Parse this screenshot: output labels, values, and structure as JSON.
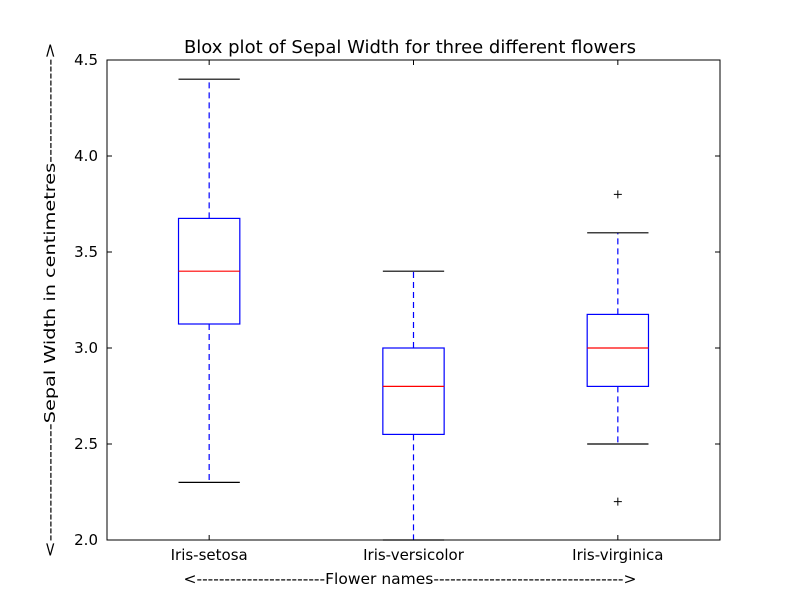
{
  "chart_data": {
    "type": "box",
    "title": "Blox plot of Sepal Width for three different flowers",
    "xlabel": "<-----------------------Flower names---------------------------------->",
    "ylabel": "<-----------------Sepal Width in centimetres--------------->",
    "ylim": [
      2.0,
      4.5
    ],
    "yticks": [
      "2.0",
      "2.5",
      "3.0",
      "3.5",
      "4.0",
      "4.5"
    ],
    "grid": false,
    "categories": [
      "Iris-setosa",
      "Iris-versicolor",
      "Iris-virginica"
    ],
    "boxes": [
      {
        "whisker_low": 2.3,
        "q1": 3.125,
        "median": 3.4,
        "q3": 3.675,
        "whisker_high": 4.4,
        "outliers": []
      },
      {
        "whisker_low": 2.0,
        "q1": 2.55,
        "median": 2.8,
        "q3": 3.0,
        "whisker_high": 3.4,
        "outliers": []
      },
      {
        "whisker_low": 2.5,
        "q1": 2.8,
        "median": 3.0,
        "q3": 3.175,
        "whisker_high": 3.6,
        "outliers": [
          3.8,
          2.2
        ]
      }
    ],
    "colors": {
      "box": "#0000ff",
      "median": "#ff0000",
      "whisker": "#0000ff",
      "cap": "#000000",
      "flier": "#000000"
    }
  }
}
